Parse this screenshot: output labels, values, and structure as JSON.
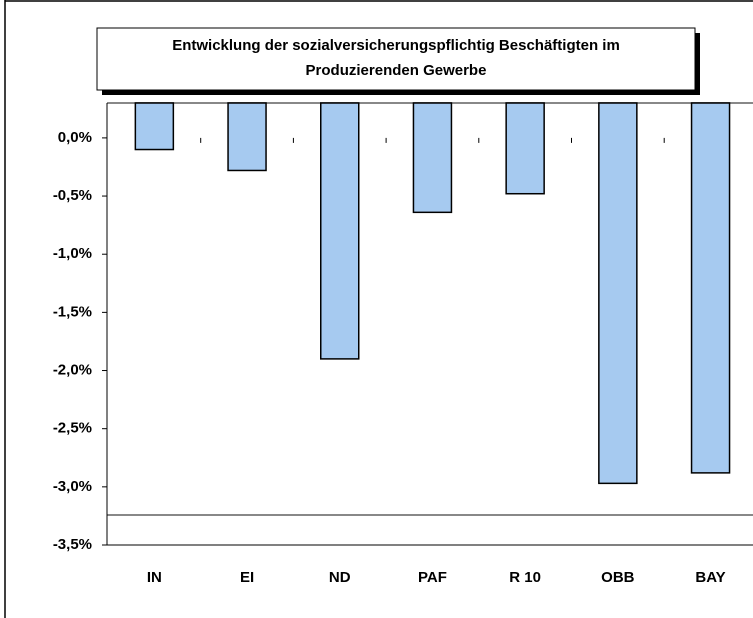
{
  "chart_data": {
    "type": "bar",
    "title": "Entwicklung der sozialversicherungspflichtig Beschäftigten im Produzierenden Gewerbe",
    "categories": [
      "IN",
      "EI",
      "ND",
      "PAF",
      "R 10",
      "OBB",
      "BAY"
    ],
    "values": [
      -0.1,
      -0.28,
      -1.9,
      -0.64,
      -0.48,
      -2.97,
      -2.88
    ],
    "color": "#a6caf0",
    "ylim": [
      -3.5,
      0.3
    ],
    "yticks": [
      {
        "value": 0,
        "label": "0,0%"
      },
      {
        "value": -0.5,
        "label": "-0,5%"
      },
      {
        "value": -1,
        "label": "-1,0%"
      },
      {
        "value": -1.5,
        "label": "-1,5%"
      },
      {
        "value": -2,
        "label": "-2,0%"
      },
      {
        "value": -2.5,
        "label": "-2,5%"
      },
      {
        "value": -3,
        "label": "-3,0%"
      },
      {
        "value": -3.5,
        "label": "-3,5%"
      }
    ]
  }
}
